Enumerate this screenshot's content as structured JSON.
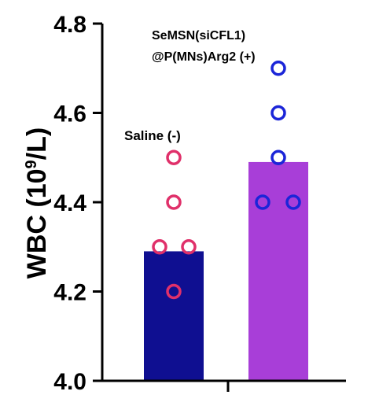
{
  "chart_data": {
    "type": "bar",
    "ylabel": {
      "main": "WBC (10",
      "superscript": "9",
      "tail": "/L)"
    },
    "ylim": [
      4.0,
      4.8
    ],
    "yticks": [
      "4.0",
      "4.2",
      "4.4",
      "4.6",
      "4.8"
    ],
    "ytick_values": [
      4.0,
      4.2,
      4.4,
      4.6,
      4.8
    ],
    "categories": [
      "Saline (-)",
      "SeMSN(siCFL1) @P(MNs)Arg2 (+)"
    ],
    "annotations": {
      "saline": "Saline (-)",
      "treatment_line1": "SeMSN(siCFL1)",
      "treatment_line2": "@P(MNs)Arg2 (+)"
    },
    "series": [
      {
        "values": [
          4.29,
          4.49
        ],
        "bar_colors": [
          "#0f0f91",
          "#a83ed8"
        ]
      }
    ],
    "points": [
      {
        "group": 0,
        "color": "#e0306a",
        "values": [
          4.5,
          4.4,
          4.3,
          4.3,
          4.2
        ]
      },
      {
        "group": 1,
        "color": "#1b25d8",
        "values": [
          4.7,
          4.6,
          4.5,
          4.4,
          4.4
        ]
      }
    ],
    "grid": false
  }
}
